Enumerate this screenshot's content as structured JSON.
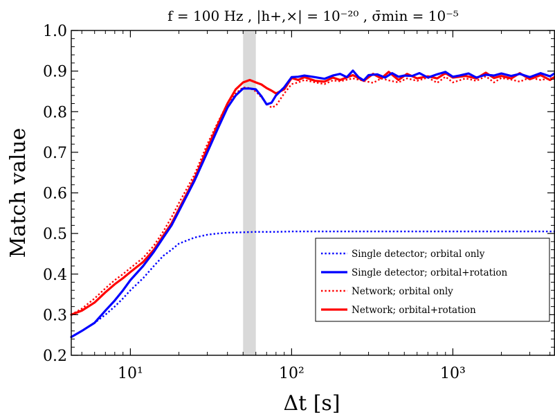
{
  "chart_data": {
    "type": "line",
    "title": "f = 100 Hz , |h+,×| = 10⁻²⁰ , σ̄min = 10⁻⁵",
    "xlabel": "Δt [s]",
    "ylabel": "Match value",
    "xscale": "log",
    "xlim": [
      4.3,
      4300
    ],
    "ylim": [
      0.2,
      1.0
    ],
    "x_ticks": [
      {
        "value": 10,
        "label": "10¹"
      },
      {
        "value": 100,
        "label": "10²"
      },
      {
        "value": 1000,
        "label": "10³"
      }
    ],
    "y_ticks": [
      {
        "value": 0.2,
        "label": "0.2"
      },
      {
        "value": 0.3,
        "label": "0.3"
      },
      {
        "value": 0.4,
        "label": "0.4"
      },
      {
        "value": 0.5,
        "label": "0.5"
      },
      {
        "value": 0.6,
        "label": "0.6"
      },
      {
        "value": 0.7,
        "label": "0.7"
      },
      {
        "value": 0.8,
        "label": "0.8"
      },
      {
        "value": 0.9,
        "label": "0.9"
      },
      {
        "value": 1.0,
        "label": "1.0"
      }
    ],
    "grid": false,
    "legend_position": "lower-right",
    "shaded_band": {
      "x_from": 50,
      "x_to": 60,
      "color": "#d9d9d9"
    },
    "series": [
      {
        "name": "Single detector; orbital only",
        "color": "#0000ff",
        "style": "dotted",
        "x": [
          4.3,
          5,
          6,
          7,
          8,
          9,
          10,
          12,
          14,
          16,
          18,
          20,
          25,
          30,
          35,
          40,
          50,
          60,
          80,
          100,
          150,
          200,
          300,
          500,
          1000,
          2000,
          4300
        ],
        "y": [
          0.245,
          0.26,
          0.28,
          0.3,
          0.32,
          0.34,
          0.36,
          0.39,
          0.42,
          0.445,
          0.46,
          0.475,
          0.49,
          0.497,
          0.5,
          0.502,
          0.503,
          0.504,
          0.504,
          0.505,
          0.505,
          0.505,
          0.505,
          0.505,
          0.505,
          0.505,
          0.505
        ]
      },
      {
        "name": "Single detector; orbital+rotation",
        "color": "#0000ff",
        "style": "solid",
        "x": [
          4.3,
          5,
          6,
          7,
          8,
          9,
          10,
          12,
          14,
          16,
          18,
          20,
          25,
          30,
          35,
          40,
          45,
          50,
          55,
          60,
          65,
          70,
          75,
          80,
          90,
          100,
          110,
          120,
          140,
          160,
          180,
          200,
          220,
          240,
          260,
          280,
          300,
          340,
          380,
          420,
          460,
          500,
          560,
          620,
          700,
          800,
          900,
          1000,
          1100,
          1250,
          1400,
          1600,
          1800,
          2000,
          2300,
          2600,
          3000,
          3500,
          4000,
          4300
        ],
        "y": [
          0.245,
          0.26,
          0.28,
          0.31,
          0.335,
          0.36,
          0.385,
          0.42,
          0.455,
          0.49,
          0.52,
          0.555,
          0.63,
          0.7,
          0.76,
          0.81,
          0.84,
          0.857,
          0.857,
          0.855,
          0.838,
          0.818,
          0.822,
          0.84,
          0.86,
          0.885,
          0.886,
          0.889,
          0.885,
          0.881,
          0.889,
          0.893,
          0.885,
          0.901,
          0.885,
          0.877,
          0.89,
          0.892,
          0.884,
          0.895,
          0.886,
          0.889,
          0.888,
          0.895,
          0.884,
          0.892,
          0.898,
          0.886,
          0.889,
          0.894,
          0.884,
          0.891,
          0.889,
          0.894,
          0.888,
          0.893,
          0.885,
          0.895,
          0.887,
          0.895
        ]
      },
      {
        "name": "Network; orbital only",
        "color": "#ff0000",
        "style": "dotted",
        "x": [
          4.3,
          5,
          6,
          7,
          8,
          9,
          10,
          12,
          14,
          16,
          18,
          20,
          25,
          30,
          35,
          40,
          45,
          50,
          55,
          60,
          65,
          70,
          75,
          80,
          90,
          100,
          110,
          120,
          140,
          160,
          180,
          200,
          240,
          280,
          320,
          360,
          400,
          460,
          520,
          600,
          700,
          800,
          900,
          1000,
          1200,
          1400,
          1600,
          1800,
          2000,
          2300,
          2600,
          3000,
          3500,
          4000,
          4300
        ],
        "y": [
          0.3,
          0.315,
          0.34,
          0.365,
          0.385,
          0.4,
          0.415,
          0.44,
          0.47,
          0.505,
          0.54,
          0.575,
          0.645,
          0.72,
          0.775,
          0.82,
          0.845,
          0.86,
          0.858,
          0.85,
          0.835,
          0.82,
          0.81,
          0.815,
          0.845,
          0.868,
          0.872,
          0.878,
          0.872,
          0.868,
          0.877,
          0.875,
          0.882,
          0.876,
          0.871,
          0.882,
          0.877,
          0.872,
          0.882,
          0.876,
          0.884,
          0.871,
          0.886,
          0.872,
          0.882,
          0.876,
          0.887,
          0.872,
          0.883,
          0.879,
          0.874,
          0.884,
          0.878,
          0.882,
          0.884
        ]
      },
      {
        "name": "Network; orbital+rotation",
        "color": "#ff0000",
        "style": "solid",
        "x": [
          4.3,
          5,
          6,
          7,
          8,
          9,
          10,
          12,
          14,
          16,
          18,
          20,
          25,
          30,
          35,
          40,
          45,
          50,
          55,
          60,
          65,
          70,
          75,
          80,
          90,
          100,
          110,
          120,
          140,
          160,
          180,
          200,
          240,
          280,
          320,
          360,
          400,
          460,
          520,
          600,
          700,
          800,
          900,
          1000,
          1200,
          1400,
          1600,
          1800,
          2000,
          2300,
          2600,
          3000,
          3500,
          4000,
          4300
        ],
        "y": [
          0.3,
          0.31,
          0.33,
          0.355,
          0.375,
          0.39,
          0.405,
          0.43,
          0.46,
          0.495,
          0.525,
          0.56,
          0.635,
          0.71,
          0.77,
          0.82,
          0.855,
          0.872,
          0.878,
          0.872,
          0.867,
          0.858,
          0.852,
          0.845,
          0.855,
          0.883,
          0.878,
          0.885,
          0.876,
          0.874,
          0.884,
          0.878,
          0.89,
          0.876,
          0.893,
          0.882,
          0.898,
          0.878,
          0.893,
          0.882,
          0.887,
          0.882,
          0.895,
          0.884,
          0.888,
          0.882,
          0.896,
          0.883,
          0.888,
          0.882,
          0.895,
          0.88,
          0.89,
          0.878,
          0.886
        ]
      }
    ]
  },
  "colors": {
    "blue": "#0000ff",
    "red": "#ff0000",
    "band": "#d9d9d9"
  }
}
